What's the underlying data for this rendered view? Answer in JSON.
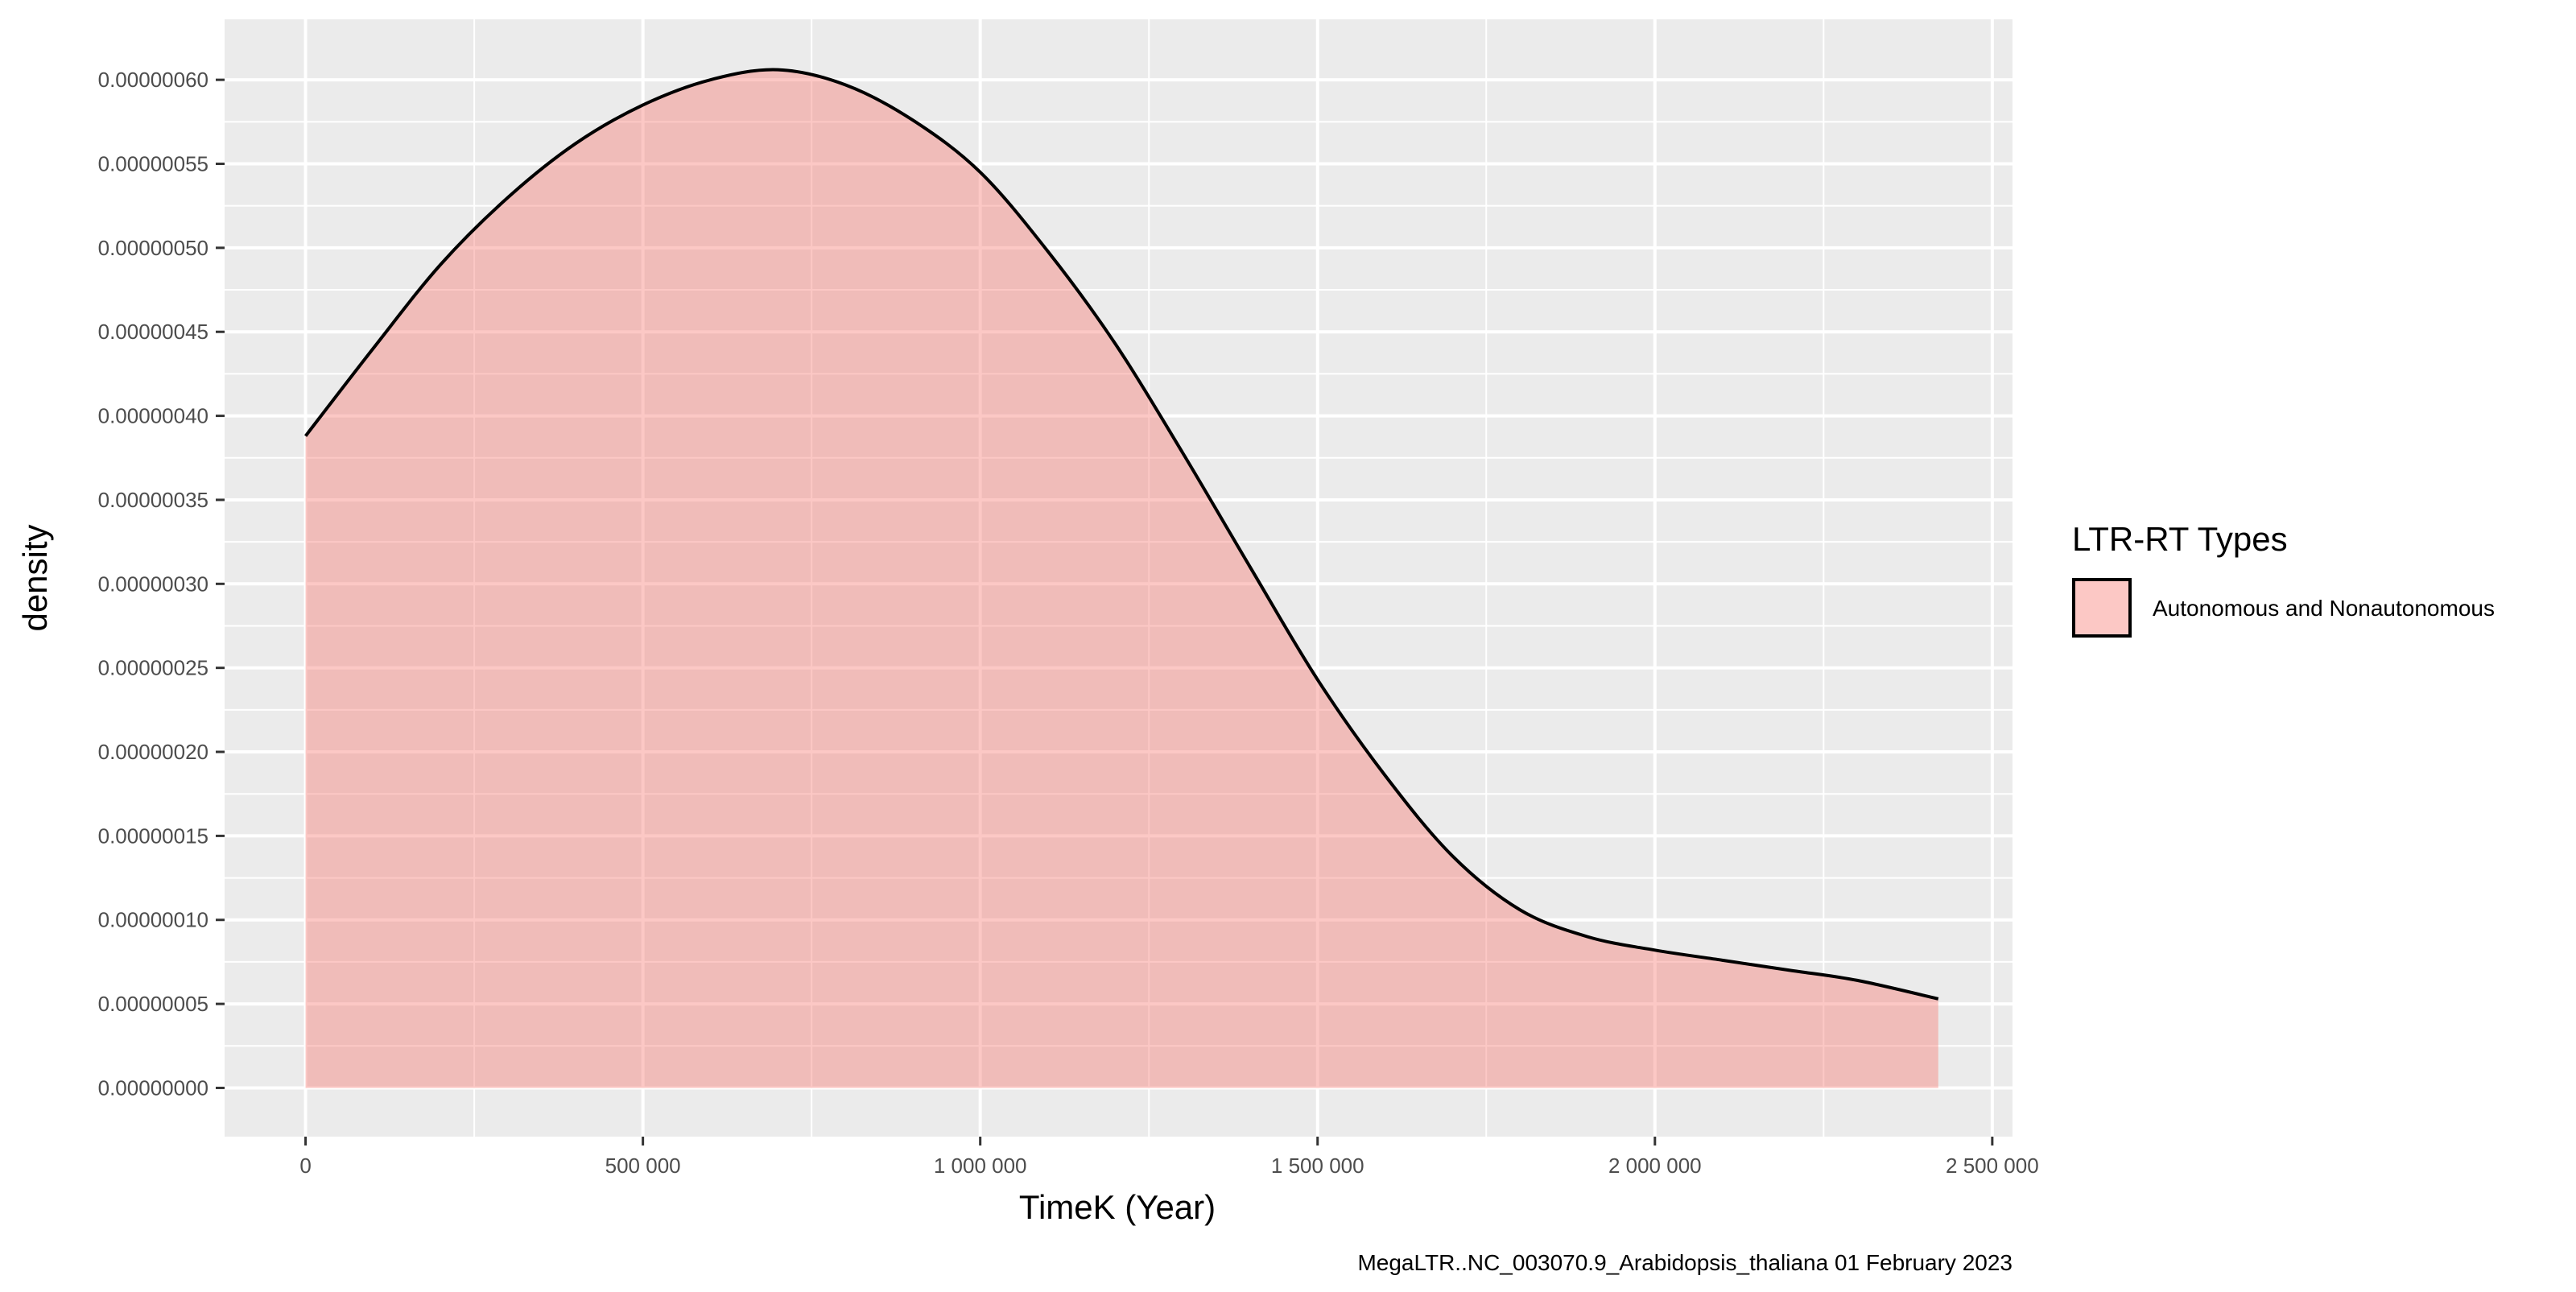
{
  "chart_data": {
    "type": "area",
    "xlabel": "TimeK (Year)",
    "ylabel": "density",
    "caption": "MegaLTR..NC_003070.9_Arabidopsis_thaliana 01 February 2023",
    "xlim": [
      -120000,
      2530000
    ],
    "ylim": [
      -2.9e-08,
      6.36e-07
    ],
    "x_ticks": [
      0,
      500000,
      1000000,
      1500000,
      2000000,
      2500000
    ],
    "x_tick_labels": [
      "0",
      "500 000",
      "1 000 000",
      "1 500 000",
      "2 000 000",
      "2 500 000"
    ],
    "y_ticks": [
      0,
      5e-08,
      1e-07,
      1.5e-07,
      2e-07,
      2.5e-07,
      3e-07,
      3.5e-07,
      4e-07,
      4.5e-07,
      5e-07,
      5.5e-07,
      6e-07
    ],
    "y_tick_labels": [
      "0.00000000",
      "0.00000005",
      "0.00000010",
      "0.00000015",
      "0.00000020",
      "0.00000025",
      "0.00000030",
      "0.00000035",
      "0.00000040",
      "0.00000045",
      "0.00000050",
      "0.00000055",
      "0.00000060"
    ],
    "grid": true,
    "legend": {
      "title": "LTR-RT Types",
      "position": "right"
    },
    "series": [
      {
        "name": "Autonomous and Nonautonomous",
        "fill": "#f8766d",
        "fill_opacity": 0.4,
        "stroke": "#000000",
        "points": [
          [
            0,
            3.88e-07
          ],
          [
            100000,
            4.4e-07
          ],
          [
            200000,
            4.9e-07
          ],
          [
            300000,
            5.3e-07
          ],
          [
            400000,
            5.62e-07
          ],
          [
            500000,
            5.85e-07
          ],
          [
            600000,
            6e-07
          ],
          [
            700000,
            6.06e-07
          ],
          [
            800000,
            5.97e-07
          ],
          [
            900000,
            5.76e-07
          ],
          [
            1000000,
            5.45e-07
          ],
          [
            1100000,
            4.98e-07
          ],
          [
            1200000,
            4.43e-07
          ],
          [
            1300000,
            3.78e-07
          ],
          [
            1400000,
            3.1e-07
          ],
          [
            1500000,
            2.43e-07
          ],
          [
            1600000,
            1.86e-07
          ],
          [
            1700000,
            1.38e-07
          ],
          [
            1800000,
            1.06e-07
          ],
          [
            1900000,
            9e-08
          ],
          [
            2000000,
            8.2e-08
          ],
          [
            2100000,
            7.6e-08
          ],
          [
            2200000,
            7e-08
          ],
          [
            2300000,
            6.4e-08
          ],
          [
            2420000,
            5.3e-08
          ]
        ]
      }
    ]
  },
  "colors": {
    "panel_background": "#ebebeb",
    "grid_line": "#ffffff",
    "tick_text": "#4d4d4d",
    "tick_mark": "#333333"
  }
}
